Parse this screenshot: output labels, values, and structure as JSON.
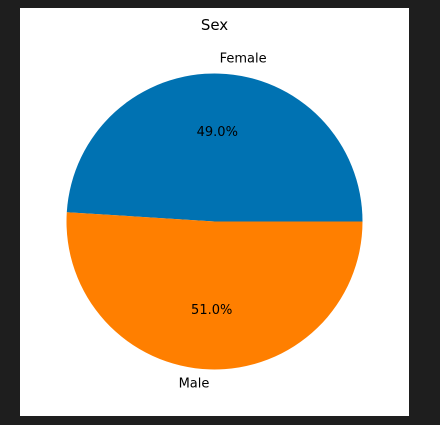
{
  "chart_data": {
    "type": "pie",
    "title": "Sex",
    "slices": [
      {
        "label": "Female",
        "value": 49.0,
        "pct_label": "49.0%",
        "color": "#0072B2"
      },
      {
        "label": "Male",
        "value": 51.0,
        "pct_label": "51.0%",
        "color": "#FF7F00"
      }
    ],
    "start_angle_deg": 0,
    "direction": "counterclockwise",
    "legend": "none"
  }
}
